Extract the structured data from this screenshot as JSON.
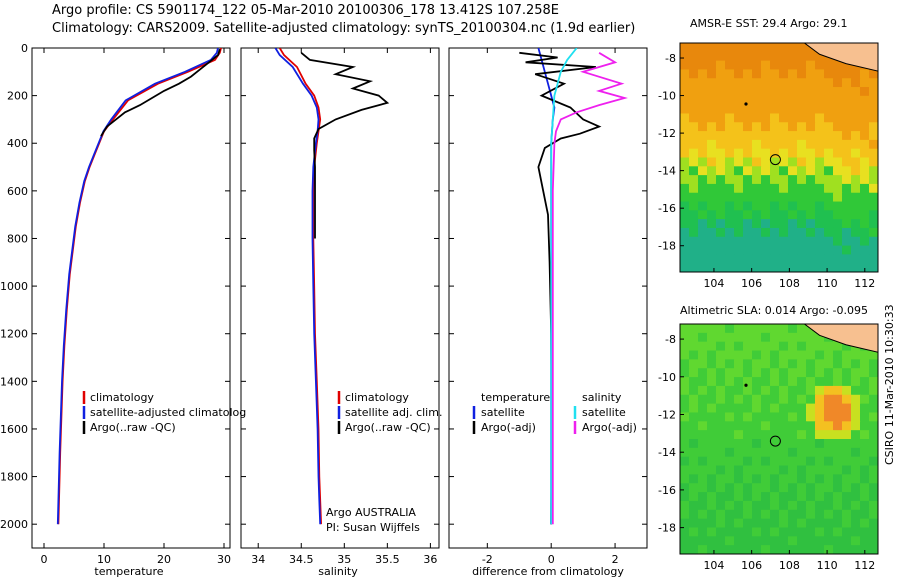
{
  "header": {
    "line1": "Argo profile: CS 5901174_122 05-Mar-2010 20100306_178 13.412S 107.258E",
    "line2": "Climatology: CARS2009. Satellite-adjusted climatology: synTS_20100304.nc (1.9d earlier)"
  },
  "credit": "CSIRO 11-Mar-2010 10:30:33",
  "argo_note": {
    "line1": "Argo AUSTRALIA",
    "line2": "PI: Susan Wijffels"
  },
  "colors": {
    "climatology": "#e00000",
    "satellite": "#1020e0",
    "argo": "#000000",
    "sal_satellite": "#20e0f0",
    "sal_argo": "#ee20ee"
  },
  "chart_data": [
    {
      "type": "line",
      "xlabel": "temperature",
      "ylabel": "",
      "xlim": [
        -2,
        31
      ],
      "ylim": [
        2100,
        0
      ],
      "y_reversed": true,
      "xticks": [
        0,
        10,
        20,
        30
      ],
      "yticks": [
        0,
        200,
        400,
        600,
        800,
        1000,
        1200,
        1400,
        1600,
        1800,
        2000
      ],
      "legend": [
        "climatology",
        "satellite-adjusted climatolog",
        "Argo(..raw -QC)"
      ],
      "legend_position": "bottom-right",
      "series": [
        {
          "name": "climatology",
          "color_key": "climatology",
          "x": [
            29.5,
            29.3,
            28.5,
            24.0,
            19.0,
            14.0,
            11.5,
            10.0,
            9.2,
            8.4,
            7.6,
            6.8,
            6.0,
            5.3,
            4.8,
            4.3,
            3.8,
            3.4,
            3.1,
            2.9,
            2.7,
            2.6,
            2.5,
            2.4
          ],
          "y": [
            0,
            20,
            50,
            100,
            150,
            220,
            300,
            350,
            400,
            450,
            500,
            560,
            650,
            750,
            850,
            950,
            1100,
            1250,
            1400,
            1550,
            1700,
            1800,
            1900,
            2000
          ]
        },
        {
          "name": "satellite-adjusted climatolog",
          "color_key": "satellite",
          "x": [
            29.0,
            28.8,
            27.8,
            23.5,
            18.5,
            13.6,
            11.2,
            9.9,
            9.1,
            8.3,
            7.5,
            6.7,
            5.9,
            5.2,
            4.7,
            4.2,
            3.7,
            3.3,
            3.0,
            2.8,
            2.6,
            2.5,
            2.4,
            2.3
          ],
          "y": [
            0,
            20,
            50,
            100,
            150,
            220,
            300,
            350,
            400,
            450,
            500,
            560,
            650,
            750,
            850,
            950,
            1100,
            1250,
            1400,
            1550,
            1700,
            1800,
            1900,
            2000
          ]
        },
        {
          "name": "Argo(..raw -QC)",
          "color_key": "argo",
          "x": [
            29.3,
            29.0,
            27.5,
            26.0,
            24.5,
            22.5,
            20.0,
            18.0,
            16.0,
            13.5,
            12.0,
            10.5,
            10.0,
            9.5
          ],
          "y": [
            5,
            30,
            60,
            90,
            120,
            150,
            180,
            210,
            240,
            270,
            300,
            330,
            350,
            370
          ]
        }
      ]
    },
    {
      "type": "line",
      "xlabel": "salinity",
      "ylabel": "",
      "xlim": [
        33.8,
        36.1
      ],
      "ylim": [
        2100,
        0
      ],
      "y_reversed": true,
      "xticks": [
        34,
        34.5,
        35,
        35.5,
        36
      ],
      "legend": [
        "climatology",
        "satellite adj. clim.",
        "Argo(..raw -QC)"
      ],
      "legend_position": "bottom-right",
      "series": [
        {
          "name": "climatology",
          "color_key": "climatology",
          "x": [
            34.25,
            34.3,
            34.45,
            34.55,
            34.65,
            34.7,
            34.72,
            34.7,
            34.68,
            34.65,
            34.64,
            34.64,
            34.65,
            34.66,
            34.68,
            34.7,
            34.71,
            34.72,
            34.73
          ],
          "y": [
            0,
            30,
            80,
            150,
            200,
            250,
            300,
            350,
            400,
            500,
            600,
            800,
            1000,
            1200,
            1400,
            1600,
            1800,
            1900,
            2000
          ]
        },
        {
          "name": "satellite adj. clim.",
          "color_key": "satellite",
          "x": [
            34.2,
            34.25,
            34.4,
            34.52,
            34.62,
            34.68,
            34.7,
            34.69,
            34.67,
            34.64,
            34.63,
            34.63,
            34.64,
            34.65,
            34.67,
            34.69,
            34.7,
            34.71,
            34.72
          ],
          "y": [
            0,
            30,
            80,
            150,
            200,
            250,
            300,
            350,
            400,
            500,
            600,
            800,
            1000,
            1200,
            1400,
            1600,
            1800,
            1900,
            2000
          ]
        },
        {
          "name": "Argo(..raw -QC)",
          "color_key": "argo",
          "x": [
            34.5,
            34.6,
            35.1,
            34.9,
            35.3,
            35.1,
            35.4,
            35.5,
            35.2,
            34.9,
            34.7,
            34.65,
            34.65,
            34.66,
            34.66
          ],
          "y": [
            20,
            50,
            80,
            110,
            140,
            170,
            200,
            230,
            260,
            300,
            340,
            380,
            430,
            500,
            800
          ]
        }
      ]
    },
    {
      "type": "line",
      "xlabel": "difference from climatology",
      "ylabel": "",
      "xlim": [
        -3.2,
        3.0
      ],
      "ylim": [
        2100,
        0
      ],
      "y_reversed": true,
      "xticks": [
        -2,
        0,
        2
      ],
      "legend_groups": [
        {
          "title": "temperature",
          "items": [
            "satellite",
            "Argo(-adj)"
          ]
        },
        {
          "title": "salinity",
          "items": [
            "satellite",
            "Argo(-adj)"
          ]
        }
      ],
      "legend_position": "bottom-center",
      "series": [
        {
          "name": "satellite",
          "group": "temperature",
          "color_key": "satellite",
          "x": [
            -0.4,
            -0.3,
            -0.2,
            -0.1,
            0.0,
            0.1,
            0.05,
            0.0,
            0.0,
            0.0,
            0.0
          ],
          "y": [
            0,
            50,
            100,
            150,
            200,
            250,
            300,
            400,
            800,
            1400,
            2000
          ]
        },
        {
          "name": "Argo(-adj)",
          "group": "temperature",
          "color_key": "argo",
          "x": [
            -1.0,
            0.2,
            -0.8,
            1.4,
            -0.5,
            0.4,
            -0.3,
            0.6,
            1.0,
            1.5,
            0.9,
            0.3,
            -0.2,
            -0.4,
            -0.25,
            -0.1,
            -0.05,
            0.0,
            0.02,
            0.0
          ],
          "y": [
            20,
            40,
            60,
            80,
            110,
            150,
            200,
            250,
            300,
            330,
            360,
            380,
            420,
            500,
            600,
            700,
            900,
            1200,
            1600,
            2000
          ]
        },
        {
          "name": "satellite",
          "group": "salinity",
          "color_key": "sal_satellite",
          "x": [
            0.8,
            0.5,
            0.3,
            0.1,
            0.05,
            0.0,
            0.0,
            0.0,
            0.0
          ],
          "y": [
            0,
            50,
            100,
            200,
            300,
            400,
            800,
            1400,
            2000
          ]
        },
        {
          "name": "Argo(-adj)",
          "group": "salinity",
          "color_key": "sal_argo",
          "x": [
            1.5,
            2.0,
            1.0,
            2.2,
            1.5,
            2.3,
            1.5,
            0.8,
            0.3,
            0.15,
            0.1,
            0.05,
            0.05,
            0.05
          ],
          "y": [
            20,
            60,
            100,
            150,
            180,
            210,
            240,
            270,
            300,
            350,
            400,
            600,
            1000,
            2000
          ]
        }
      ]
    },
    {
      "type": "heatmap",
      "title": "AMSR-E SST: 29.4 Argo: 29.1",
      "xlim": [
        102.2,
        112.7
      ],
      "ylim": [
        -19.4,
        -7.2
      ],
      "xticks": [
        104,
        106,
        108,
        110,
        112
      ],
      "yticks": [
        -8,
        -10,
        -12,
        -14,
        -16,
        -18
      ],
      "profile_location": {
        "lon": 107.258,
        "lat": -13.412
      }
    },
    {
      "type": "heatmap",
      "title": "Altimetric SLA: 0.014 Argo: -0.095",
      "xlim": [
        102.2,
        112.7
      ],
      "ylim": [
        -19.4,
        -7.2
      ],
      "xticks": [
        104,
        106,
        108,
        110,
        112
      ],
      "yticks": [
        -8,
        -10,
        -12,
        -14,
        -16,
        -18
      ],
      "profile_location": {
        "lon": 107.258,
        "lat": -13.412
      }
    }
  ]
}
